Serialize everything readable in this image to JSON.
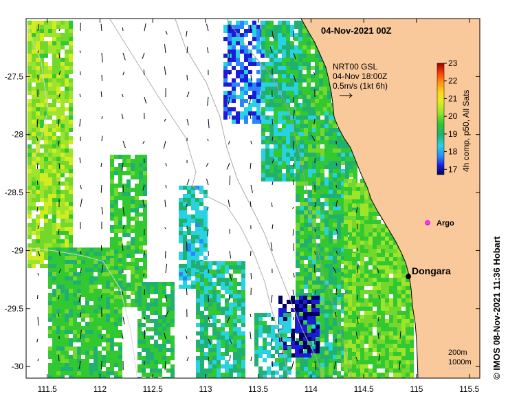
{
  "map": {
    "title": "04-Nov-2021 00Z",
    "lon_range": [
      111.3,
      115.6
    ],
    "lat_range": [
      -30.1,
      -27.0
    ],
    "lon_ticks": [
      {
        "value": 111.5,
        "label": "111.5"
      },
      {
        "value": 112,
        "label": "112"
      },
      {
        "value": 112.5,
        "label": "112.5"
      },
      {
        "value": 113,
        "label": "113"
      },
      {
        "value": 113.5,
        "label": "113.5"
      },
      {
        "value": 114,
        "label": "114"
      },
      {
        "value": 114.5,
        "label": "114.5"
      },
      {
        "value": 115,
        "label": "115"
      },
      {
        "value": 115.5,
        "label": "115.5"
      }
    ],
    "lat_ticks": [
      {
        "value": -27.5,
        "label": "-27.5"
      },
      {
        "value": -28,
        "label": "-28"
      },
      {
        "value": -28.5,
        "label": "-28.5"
      },
      {
        "value": -29,
        "label": "-29"
      },
      {
        "value": -29.5,
        "label": "-29.5"
      },
      {
        "value": -30,
        "label": "-30"
      }
    ],
    "current_legend": {
      "line1": "NRT00 GSL",
      "line2": "04-Nov 18:00Z",
      "line3": "0.5m/s (1kt 6h)"
    },
    "colorbar": {
      "label": "4h comp, p50, All Sats",
      "min": 16.7,
      "max": 23,
      "ticks": [
        "17",
        "18",
        "19",
        "20",
        "21",
        "22",
        "23"
      ]
    },
    "places": [
      {
        "name": "Dongara",
        "lon": 114.93,
        "lat": -29.25
      },
      {
        "name": "Argo",
        "lon": 115.12,
        "lat": -28.85
      }
    ],
    "depth_legend": {
      "line1": "200m",
      "line2": "1000m"
    },
    "credit": "© IMOS 08-Nov-2021 11:36 Hobart",
    "colors": {
      "land": "#f9c89b",
      "coast": "#000000",
      "arrow": "#000000",
      "argo": "#ff33ff",
      "bathy": "#9c9c9c"
    }
  }
}
